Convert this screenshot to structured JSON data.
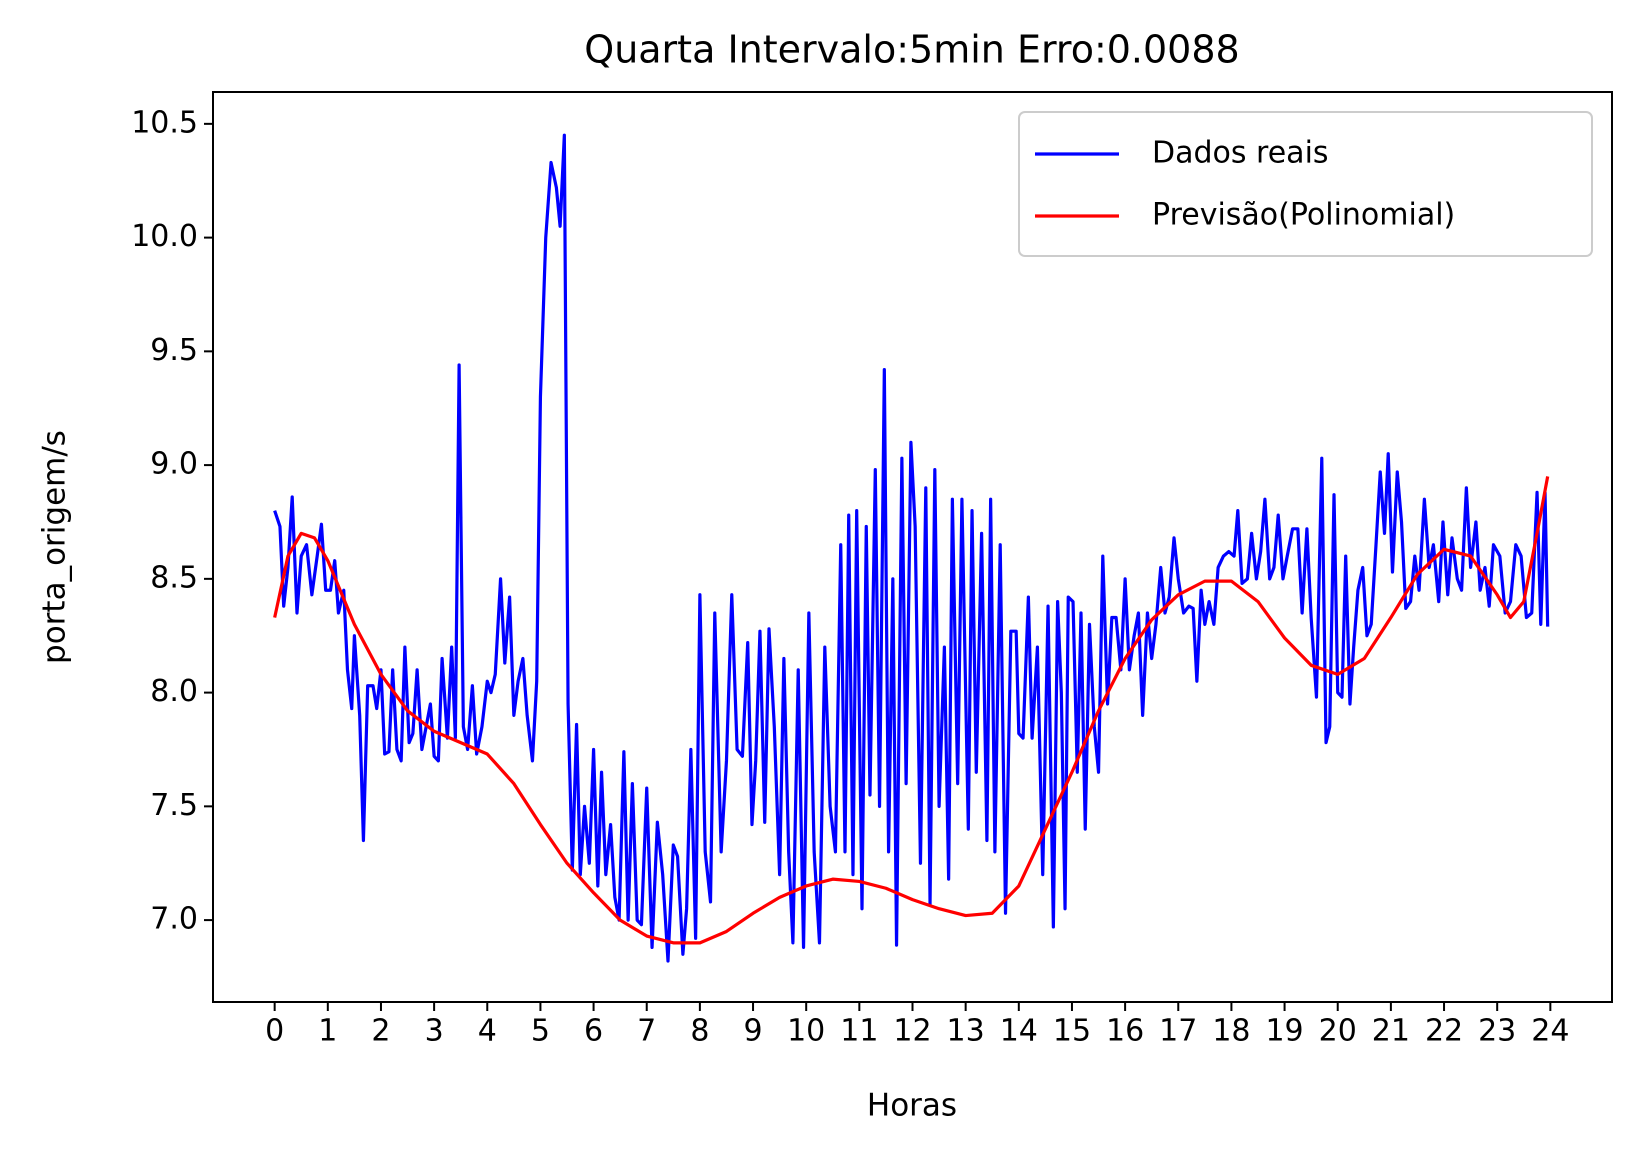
{
  "chart_data": {
    "type": "line",
    "title": "Quarta Intervalo:5min Erro:0.0088",
    "xlabel": "Horas",
    "ylabel": "porta_origem/s",
    "xlim": [
      -1.16,
      25.16
    ],
    "ylim": [
      6.64,
      10.64
    ],
    "xticks": [
      0,
      1,
      2,
      3,
      4,
      5,
      6,
      7,
      8,
      9,
      10,
      11,
      12,
      13,
      14,
      15,
      16,
      17,
      18,
      19,
      20,
      21,
      22,
      23,
      24
    ],
    "yticks": [
      {
        "value": 7,
        "label": "7.0"
      },
      7.5,
      {
        "value": 8,
        "label": "8.0"
      },
      8.5,
      {
        "value": 9,
        "label": "9.0"
      },
      9.5,
      {
        "value": 10,
        "label": "10.0"
      },
      10.5
    ],
    "legend": "upper right",
    "grid": false,
    "series": [
      {
        "name": "Dados reais",
        "color": "#0000ff",
        "x": [
          0,
          0.1,
          0.17,
          0.25,
          0.33,
          0.42,
          0.5,
          0.6,
          0.7,
          0.8,
          0.88,
          0.96,
          1.05,
          1.13,
          1.2,
          1.3,
          1.37,
          1.45,
          1.5,
          1.6,
          1.67,
          1.75,
          1.85,
          1.92,
          2.0,
          2.07,
          2.15,
          2.22,
          2.3,
          2.38,
          2.45,
          2.53,
          2.6,
          2.68,
          2.77,
          2.85,
          2.93,
          3.0,
          3.08,
          3.15,
          3.25,
          3.33,
          3.4,
          3.47,
          3.55,
          3.63,
          3.72,
          3.8,
          3.9,
          4.0,
          4.07,
          4.15,
          4.25,
          4.33,
          4.42,
          4.5,
          4.58,
          4.67,
          4.75,
          4.85,
          4.93,
          5.0,
          5.1,
          5.2,
          5.3,
          5.37,
          5.45,
          5.52,
          5.6,
          5.68,
          5.75,
          5.83,
          5.92,
          6.0,
          6.08,
          6.15,
          6.23,
          6.32,
          6.4,
          6.48,
          6.57,
          6.65,
          6.73,
          6.82,
          6.9,
          7.0,
          7.1,
          7.2,
          7.3,
          7.4,
          7.5,
          7.58,
          7.68,
          7.75,
          7.83,
          7.92,
          8.0,
          8.1,
          8.2,
          8.28,
          8.4,
          8.5,
          8.6,
          8.7,
          8.8,
          8.9,
          8.98,
          9.05,
          9.13,
          9.22,
          9.3,
          9.4,
          9.5,
          9.58,
          9.67,
          9.75,
          9.85,
          9.95,
          10.05,
          10.15,
          10.25,
          10.35,
          10.45,
          10.55,
          10.65,
          10.73,
          10.8,
          10.88,
          10.95,
          11.05,
          11.13,
          11.2,
          11.3,
          11.38,
          11.47,
          11.55,
          11.63,
          11.7,
          11.8,
          11.88,
          11.97,
          12.05,
          12.15,
          12.25,
          12.33,
          12.42,
          12.5,
          12.6,
          12.68,
          12.75,
          12.85,
          12.93,
          13.05,
          13.12,
          13.2,
          13.3,
          13.4,
          13.47,
          13.55,
          13.65,
          13.75,
          13.85,
          13.95,
          14.0,
          14.08,
          14.18,
          14.25,
          14.35,
          14.45,
          14.55,
          14.65,
          14.73,
          14.8,
          14.87,
          14.93,
          15.02,
          15.1,
          15.17,
          15.25,
          15.33,
          15.42,
          15.5,
          15.58,
          15.67,
          15.75,
          15.83,
          15.92,
          16.0,
          16.08,
          16.17,
          16.25,
          16.33,
          16.42,
          16.5,
          16.58,
          16.67,
          16.75,
          16.83,
          16.92,
          17.0,
          17.1,
          17.2,
          17.28,
          17.35,
          17.43,
          17.5,
          17.58,
          17.67,
          17.75,
          17.85,
          17.95,
          18.05,
          18.12,
          18.2,
          18.3,
          18.38,
          18.47,
          18.55,
          18.63,
          18.72,
          18.8,
          18.88,
          18.97,
          19.05,
          19.15,
          19.25,
          19.33,
          19.42,
          19.5,
          19.6,
          19.7,
          19.78,
          19.85,
          19.93,
          20.0,
          20.08,
          20.15,
          20.23,
          20.3,
          20.38,
          20.47,
          20.55,
          20.63,
          20.72,
          20.8,
          20.88,
          20.95,
          21.03,
          21.12,
          21.2,
          21.28,
          21.37,
          21.45,
          21.53,
          21.63,
          21.72,
          21.8,
          21.9,
          21.98,
          22.07,
          22.15,
          22.25,
          22.33,
          22.42,
          22.5,
          22.6,
          22.68,
          22.77,
          22.85,
          22.93,
          23.05,
          23.15,
          23.25,
          23.35,
          23.45,
          23.55,
          23.65,
          23.75,
          23.82,
          23.9,
          23.95
        ],
        "values": [
          8.8,
          8.73,
          8.38,
          8.55,
          8.86,
          8.35,
          8.6,
          8.65,
          8.43,
          8.6,
          8.74,
          8.45,
          8.45,
          8.58,
          8.35,
          8.45,
          8.1,
          7.93,
          8.25,
          7.9,
          7.35,
          8.03,
          8.03,
          7.93,
          8.1,
          7.73,
          7.74,
          8.1,
          7.75,
          7.7,
          8.2,
          7.78,
          7.82,
          8.1,
          7.75,
          7.85,
          7.95,
          7.72,
          7.7,
          8.15,
          7.8,
          8.2,
          7.8,
          9.44,
          7.85,
          7.75,
          8.03,
          7.73,
          7.85,
          8.05,
          8.0,
          8.08,
          8.5,
          8.13,
          8.42,
          7.9,
          8.05,
          8.15,
          7.9,
          7.7,
          8.05,
          9.3,
          10.0,
          10.33,
          10.22,
          10.05,
          10.45,
          7.95,
          7.22,
          7.86,
          7.2,
          7.5,
          7.25,
          7.75,
          7.15,
          7.65,
          7.2,
          7.42,
          7.1,
          7.0,
          7.74,
          7.0,
          7.6,
          7.0,
          6.98,
          7.58,
          6.88,
          7.43,
          7.2,
          6.82,
          7.33,
          7.28,
          6.85,
          7.05,
          7.75,
          6.92,
          8.43,
          7.3,
          7.08,
          8.35,
          7.3,
          7.7,
          8.43,
          7.75,
          7.72,
          8.22,
          7.42,
          7.7,
          8.27,
          7.43,
          8.28,
          7.85,
          7.2,
          8.15,
          7.3,
          6.9,
          8.1,
          6.88,
          8.35,
          7.3,
          6.9,
          8.2,
          7.5,
          7.3,
          8.65,
          7.3,
          8.78,
          7.2,
          8.8,
          7.05,
          8.73,
          7.55,
          8.98,
          7.5,
          9.42,
          7.3,
          8.5,
          6.89,
          9.03,
          7.6,
          9.1,
          8.73,
          7.25,
          8.9,
          7.07,
          8.98,
          7.5,
          8.2,
          7.18,
          8.85,
          7.6,
          8.85,
          7.4,
          8.8,
          7.65,
          8.7,
          7.35,
          8.85,
          7.3,
          8.65,
          7.03,
          8.27,
          8.27,
          7.82,
          7.8,
          8.42,
          7.8,
          8.2,
          7.2,
          8.38,
          6.97,
          8.4,
          8.0,
          7.05,
          8.42,
          8.4,
          7.65,
          8.35,
          7.4,
          8.3,
          7.85,
          7.65,
          8.6,
          7.95,
          8.33,
          8.33,
          8.1,
          8.5,
          8.1,
          8.25,
          8.35,
          7.9,
          8.35,
          8.15,
          8.3,
          8.55,
          8.35,
          8.42,
          8.68,
          8.5,
          8.35,
          8.38,
          8.37,
          8.05,
          8.45,
          8.3,
          8.4,
          8.3,
          8.55,
          8.6,
          8.62,
          8.6,
          8.8,
          8.48,
          8.5,
          8.7,
          8.5,
          8.62,
          8.85,
          8.5,
          8.55,
          8.78,
          8.5,
          8.6,
          8.72,
          8.72,
          8.35,
          8.72,
          8.33,
          7.98,
          9.03,
          7.78,
          7.85,
          8.87,
          8.0,
          7.98,
          8.6,
          7.95,
          8.2,
          8.45,
          8.55,
          8.25,
          8.3,
          8.65,
          8.97,
          8.7,
          9.05,
          8.53,
          8.97,
          8.75,
          8.37,
          8.4,
          8.6,
          8.45,
          8.85,
          8.55,
          8.65,
          8.4,
          8.75,
          8.43,
          8.68,
          8.5,
          8.45,
          8.9,
          8.55,
          8.75,
          8.45,
          8.55,
          8.38,
          8.65,
          8.6,
          8.35,
          8.4,
          8.65,
          8.6,
          8.33,
          8.35,
          8.88,
          8.3,
          8.88,
          8.29
        ]
      },
      {
        "name": "Previsão(Polinomial)",
        "color": "#ff0000",
        "x": [
          0,
          0.25,
          0.5,
          0.75,
          1,
          1.5,
          2,
          2.5,
          3,
          3.5,
          4,
          4.5,
          5,
          5.5,
          6,
          6.5,
          7,
          7.5,
          8,
          8.5,
          9,
          9.5,
          10,
          10.5,
          11,
          11.5,
          12,
          12.5,
          13,
          13.5,
          14,
          14.5,
          15,
          15.5,
          16,
          16.5,
          17,
          17.5,
          18,
          18.5,
          19,
          19.5,
          20,
          20.5,
          21,
          21.5,
          22,
          22.5,
          23,
          23.25,
          23.5,
          23.75,
          23.95
        ],
        "values": [
          8.33,
          8.6,
          8.7,
          8.68,
          8.58,
          8.3,
          8.08,
          7.92,
          7.83,
          7.78,
          7.73,
          7.6,
          7.42,
          7.25,
          7.12,
          7.0,
          6.93,
          6.9,
          6.9,
          6.95,
          7.03,
          7.1,
          7.15,
          7.18,
          7.17,
          7.14,
          7.09,
          7.05,
          7.02,
          7.03,
          7.15,
          7.4,
          7.65,
          7.92,
          8.15,
          8.32,
          8.43,
          8.49,
          8.49,
          8.4,
          8.24,
          8.12,
          8.08,
          8.15,
          8.33,
          8.52,
          8.63,
          8.6,
          8.43,
          8.33,
          8.4,
          8.7,
          8.95
        ]
      }
    ]
  }
}
